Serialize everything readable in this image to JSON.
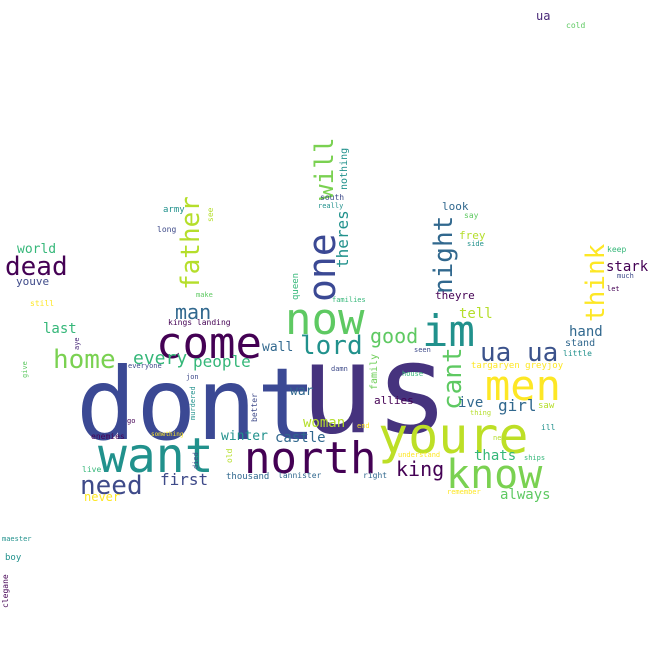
{
  "title": "",
  "palette": {
    "dark_purple": "#440154",
    "indigo": "#3b4994",
    "slate": "#31688e",
    "teal": "#21918c",
    "green": "#35b779",
    "lime": "#7ad151",
    "yellow": "#fde725"
  },
  "words": [
    {
      "text": "dont",
      "color": "#3b4994"
    },
    {
      "text": "us",
      "color": "#46337e"
    },
    {
      "text": "youre",
      "color": "#bddf26"
    },
    {
      "text": "want",
      "color": "#21918c"
    },
    {
      "text": "north",
      "color": "#440154"
    },
    {
      "text": "know",
      "color": "#7ad151"
    },
    {
      "text": "men",
      "color": "#fde725"
    },
    {
      "text": "come",
      "color": "#440154"
    },
    {
      "text": "now",
      "color": "#5ec962"
    },
    {
      "text": "im",
      "color": "#21918c"
    },
    {
      "text": "one",
      "color": "#3b4994"
    },
    {
      "text": "will",
      "color": "#7ad151"
    },
    {
      "text": "think",
      "color": "#fde725"
    },
    {
      "text": "night",
      "color": "#31688e"
    },
    {
      "text": "cant",
      "color": "#5ec962"
    },
    {
      "text": "father",
      "color": "#b5de2b"
    },
    {
      "text": "dead",
      "color": "#440154"
    },
    {
      "text": "need",
      "color": "#3e4a89"
    },
    {
      "text": "home",
      "color": "#7ad151"
    },
    {
      "text": "lord",
      "color": "#21918c"
    },
    {
      "text": "ua ua",
      "color": "#3b528b"
    },
    {
      "text": "good",
      "color": "#5ec962"
    },
    {
      "text": "man",
      "color": "#31688e"
    },
    {
      "text": "every",
      "color": "#35b779"
    },
    {
      "text": "people",
      "color": "#35b779"
    },
    {
      "text": "king",
      "color": "#440154"
    },
    {
      "text": "first",
      "color": "#3e4a89"
    },
    {
      "text": "girl",
      "color": "#31688e"
    },
    {
      "text": "woman",
      "color": "#b5de2b"
    },
    {
      "text": "castle",
      "color": "#31688e"
    },
    {
      "text": "winter",
      "color": "#21918c"
    },
    {
      "text": "thats",
      "color": "#35b779"
    },
    {
      "text": "always",
      "color": "#5ec962"
    },
    {
      "text": "theres",
      "color": "#21918c"
    },
    {
      "text": "stark",
      "color": "#440154"
    },
    {
      "text": "hand",
      "color": "#31688e"
    },
    {
      "text": "last",
      "color": "#35b779"
    },
    {
      "text": "tell",
      "color": "#b5de2b"
    },
    {
      "text": "ive",
      "color": "#31688e"
    },
    {
      "text": "wall",
      "color": "#31688e"
    },
    {
      "text": "war",
      "color": "#31688e"
    },
    {
      "text": "world",
      "color": "#35b779"
    },
    {
      "text": "youve",
      "color": "#3e4a89"
    },
    {
      "text": "never",
      "color": "#fde725"
    },
    {
      "text": "theyre",
      "color": "#440154"
    },
    {
      "text": "look",
      "color": "#31688e"
    },
    {
      "text": "frey",
      "color": "#b5de2b"
    },
    {
      "text": "allies",
      "color": "#440154"
    },
    {
      "text": "stand",
      "color": "#31688e"
    },
    {
      "text": "nothing",
      "color": "#21918c"
    },
    {
      "text": "queen",
      "color": "#35b779"
    },
    {
      "text": "family",
      "color": "#6ece58"
    },
    {
      "text": "ua",
      "color": "#482878"
    },
    {
      "text": "cold",
      "color": "#5ec962"
    },
    {
      "text": "army",
      "color": "#21918c"
    },
    {
      "text": "see",
      "color": "#b5de2b"
    },
    {
      "text": "long",
      "color": "#3e4a89"
    },
    {
      "text": "south",
      "color": "#3e4a89"
    },
    {
      "text": "really",
      "color": "#21918c"
    },
    {
      "text": "say",
      "color": "#5ec962"
    },
    {
      "text": "side",
      "color": "#21918c"
    },
    {
      "text": "keep",
      "color": "#35b779"
    },
    {
      "text": "much",
      "color": "#3e4a89"
    },
    {
      "text": "let",
      "color": "#440154"
    },
    {
      "text": "make",
      "color": "#5ec962"
    },
    {
      "text": "families",
      "color": "#35b779"
    },
    {
      "text": "still",
      "color": "#fde725"
    },
    {
      "text": "kings landing",
      "color": "#440154"
    },
    {
      "text": "seen",
      "color": "#3e4a89"
    },
    {
      "text": "targaryen greyjoy",
      "color": "#fde725"
    },
    {
      "text": "little",
      "color": "#21918c"
    },
    {
      "text": "give",
      "color": "#5ec962"
    },
    {
      "text": "aye",
      "color": "#482878"
    },
    {
      "text": "everyone",
      "color": "#3e4a89"
    },
    {
      "text": "jon",
      "color": "#3e4a89"
    },
    {
      "text": "damn",
      "color": "#3e4a89"
    },
    {
      "text": "house",
      "color": "#35b779"
    },
    {
      "text": "saw",
      "color": "#b5de2b"
    },
    {
      "text": "thing",
      "color": "#b5de2b"
    },
    {
      "text": "better",
      "color": "#3e4a89"
    },
    {
      "text": "murdered",
      "color": "#21918c"
    },
    {
      "text": "end",
      "color": "#fde725"
    },
    {
      "text": "ill",
      "color": "#21918c"
    },
    {
      "text": "go",
      "color": "#440154"
    },
    {
      "text": "enemies",
      "color": "#440154"
    },
    {
      "text": "something",
      "color": "#fde725"
    },
    {
      "text": "new",
      "color": "#b5de2b"
    },
    {
      "text": "died",
      "color": "#3e4a89"
    },
    {
      "text": "old",
      "color": "#b5de2b"
    },
    {
      "text": "understand",
      "color": "#fde725"
    },
    {
      "text": "ships",
      "color": "#35b779"
    },
    {
      "text": "live",
      "color": "#35b779"
    },
    {
      "text": "thousand",
      "color": "#31688e"
    },
    {
      "text": "lannister",
      "color": "#31688e"
    },
    {
      "text": "right",
      "color": "#31688e"
    },
    {
      "text": "remember",
      "color": "#fde725"
    },
    {
      "text": "maester",
      "color": "#21918c"
    },
    {
      "text": "boy",
      "color": "#21918c"
    },
    {
      "text": "clegane",
      "color": "#440154"
    }
  ]
}
